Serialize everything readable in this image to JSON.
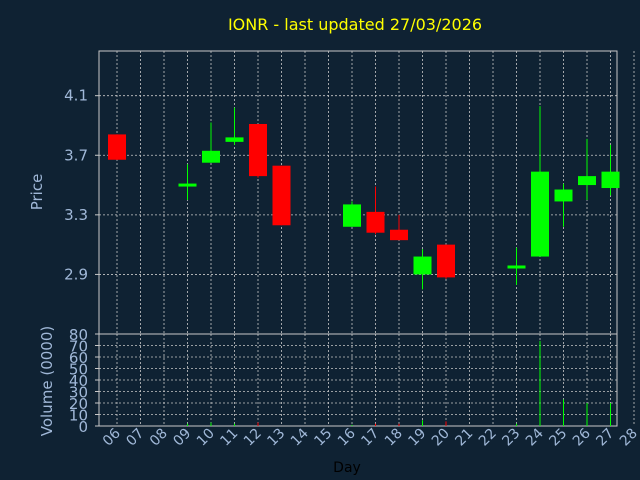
{
  "chart_data": [
    {
      "type": "candlestick",
      "title": "IONR - last updated 27/03/2026",
      "ylabel": "Price",
      "ylim": [
        2.5,
        4.4
      ],
      "yticks": [
        "2.9",
        "3.3",
        "3.7",
        "4.1"
      ],
      "ytick_values": [
        2.9,
        3.3,
        3.7,
        4.1
      ],
      "grid": true,
      "up_color": "#00ff00",
      "down_color": "#ff0000",
      "candles": [
        {
          "day": "06",
          "open": 3.84,
          "high": 3.84,
          "low": 3.67,
          "close": 3.67
        },
        {
          "day": "09",
          "open": 3.49,
          "high": 3.64,
          "low": 3.4,
          "close": 3.51
        },
        {
          "day": "10",
          "open": 3.65,
          "high": 3.92,
          "low": 3.65,
          "close": 3.73
        },
        {
          "day": "11",
          "open": 3.79,
          "high": 4.02,
          "low": 3.77,
          "close": 3.82
        },
        {
          "day": "12",
          "open": 3.91,
          "high": 3.91,
          "low": 3.55,
          "close": 3.56
        },
        {
          "day": "13",
          "open": 3.63,
          "high": 3.63,
          "low": 3.23,
          "close": 3.23
        },
        {
          "day": "16",
          "open": 3.22,
          "high": 3.39,
          "low": 3.22,
          "close": 3.37
        },
        {
          "day": "17",
          "open": 3.32,
          "high": 3.49,
          "low": 3.17,
          "close": 3.18
        },
        {
          "day": "18",
          "open": 3.2,
          "high": 3.3,
          "low": 3.13,
          "close": 3.13
        },
        {
          "day": "19",
          "open": 2.9,
          "high": 3.07,
          "low": 2.8,
          "close": 3.02
        },
        {
          "day": "20",
          "open": 3.1,
          "high": 3.1,
          "low": 2.87,
          "close": 2.88
        },
        {
          "day": "23",
          "open": 2.96,
          "high": 3.08,
          "low": 2.83,
          "close": 2.96
        },
        {
          "day": "24",
          "open": 3.02,
          "high": 4.03,
          "low": 3.02,
          "close": 3.59
        },
        {
          "day": "25",
          "open": 3.39,
          "high": 3.51,
          "low": 3.22,
          "close": 3.47
        },
        {
          "day": "26",
          "open": 3.5,
          "high": 3.81,
          "low": 3.4,
          "close": 3.56
        },
        {
          "day": "27",
          "open": 3.48,
          "high": 3.77,
          "low": 3.43,
          "close": 3.59
        }
      ]
    },
    {
      "type": "bar",
      "ylabel": "Volume (0000)",
      "xlabel": "Day",
      "ylim": [
        0,
        80
      ],
      "yticks": [
        "0",
        "10",
        "20",
        "30",
        "40",
        "50",
        "60",
        "70",
        "80"
      ],
      "ytick_values": [
        0,
        10,
        20,
        30,
        40,
        50,
        60,
        70,
        80
      ],
      "categories": [
        "06",
        "07",
        "08",
        "09",
        "10",
        "11",
        "12",
        "13",
        "14",
        "15",
        "16",
        "17",
        "18",
        "19",
        "20",
        "21",
        "22",
        "23",
        "24",
        "25",
        "26",
        "27",
        "28"
      ],
      "bars": [
        {
          "day": "09",
          "value": 2,
          "color": "#00ff00"
        },
        {
          "day": "10",
          "value": 3,
          "color": "#00ff00"
        },
        {
          "day": "11",
          "value": 2,
          "color": "#00ff00"
        },
        {
          "day": "12",
          "value": 3,
          "color": "#ff0000"
        },
        {
          "day": "16",
          "value": 1,
          "color": "#00ff00"
        },
        {
          "day": "17",
          "value": 2,
          "color": "#ff0000"
        },
        {
          "day": "18",
          "value": 2,
          "color": "#ff0000"
        },
        {
          "day": "19",
          "value": 5,
          "color": "#00ff00"
        },
        {
          "day": "20",
          "value": 4,
          "color": "#ff0000"
        },
        {
          "day": "23",
          "value": 2,
          "color": "#00ff00"
        },
        {
          "day": "24",
          "value": 74,
          "color": "#00ff00"
        },
        {
          "day": "25",
          "value": 23,
          "color": "#00ff00"
        },
        {
          "day": "26",
          "value": 20,
          "color": "#00ff00"
        },
        {
          "day": "27",
          "value": 20,
          "color": "#00ff00"
        }
      ]
    }
  ]
}
